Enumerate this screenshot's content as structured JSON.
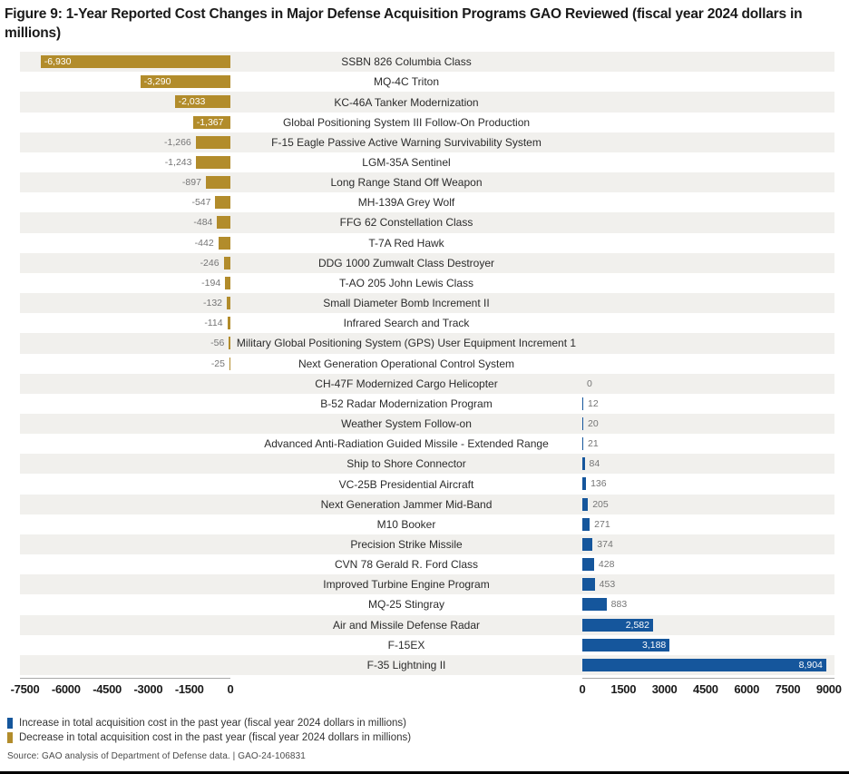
{
  "title": "Figure 9: 1-Year Reported Cost Changes in Major Defense Acquisition Programs GAO Reviewed (fiscal year 2024 dollars in millions)",
  "colors": {
    "increase_blue": "#15569C",
    "decrease_gold": "#B28C2B",
    "row_stripe": "#F1F0ED",
    "outside_value_gray": "#757575",
    "inside_value_white": "#FFFFFF"
  },
  "chart_data": {
    "type": "bar",
    "orientation": "diverging-horizontal",
    "title": "1-Year Reported Cost Changes in Major Defense Acquisition Programs GAO Reviewed",
    "value_unit": "fiscal year 2024 dollars in millions",
    "grid": false,
    "negative_axis": {
      "range": [
        -7500,
        0
      ],
      "ticks": [
        -7500,
        -6000,
        -4500,
        -3000,
        -1500,
        0
      ]
    },
    "positive_axis": {
      "range": [
        0,
        9000
      ],
      "ticks": [
        0,
        1500,
        3000,
        4500,
        6000,
        7500,
        9000
      ]
    },
    "programs": [
      {
        "name": "SSBN 826 Columbia Class",
        "value": -6930,
        "label": "-6,930"
      },
      {
        "name": "MQ-4C Triton",
        "value": -3290,
        "label": "-3,290"
      },
      {
        "name": "KC-46A Tanker Modernization",
        "value": -2033,
        "label": "-2,033"
      },
      {
        "name": "Global Positioning System III Follow-On Production",
        "value": -1367,
        "label": "-1,367"
      },
      {
        "name": "F-15 Eagle Passive Active Warning Survivability System",
        "value": -1266,
        "label": "-1,266"
      },
      {
        "name": "LGM-35A Sentinel",
        "value": -1243,
        "label": "-1,243"
      },
      {
        "name": "Long Range Stand Off Weapon",
        "value": -897,
        "label": "-897"
      },
      {
        "name": "MH-139A Grey Wolf",
        "value": -547,
        "label": "-547"
      },
      {
        "name": "FFG 62 Constellation Class",
        "value": -484,
        "label": "-484"
      },
      {
        "name": "T-7A Red Hawk",
        "value": -442,
        "label": "-442"
      },
      {
        "name": "DDG 1000 Zumwalt Class Destroyer",
        "value": -246,
        "label": "-246"
      },
      {
        "name": "T-AO 205 John Lewis Class",
        "value": -194,
        "label": "-194"
      },
      {
        "name": "Small Diameter Bomb Increment II",
        "value": -132,
        "label": "-132"
      },
      {
        "name": "Infrared Search and Track",
        "value": -114,
        "label": "-114"
      },
      {
        "name": "Military Global Positioning System (GPS) User Equipment Increment 1",
        "value": -56,
        "label": "-56"
      },
      {
        "name": "Next Generation Operational Control System",
        "value": -25,
        "label": "-25"
      },
      {
        "name": "CH-47F Modernized Cargo Helicopter",
        "value": 0,
        "label": "0"
      },
      {
        "name": "B-52 Radar Modernization Program",
        "value": 12,
        "label": "12"
      },
      {
        "name": "Weather System Follow-on",
        "value": 20,
        "label": "20"
      },
      {
        "name": "Advanced Anti-Radiation Guided Missile - Extended Range",
        "value": 21,
        "label": "21"
      },
      {
        "name": "Ship to Shore Connector",
        "value": 84,
        "label": "84"
      },
      {
        "name": "VC-25B Presidential Aircraft",
        "value": 136,
        "label": "136"
      },
      {
        "name": "Next Generation Jammer Mid-Band",
        "value": 205,
        "label": "205"
      },
      {
        "name": "M10 Booker",
        "value": 271,
        "label": "271"
      },
      {
        "name": "Precision Strike Missile",
        "value": 374,
        "label": "374"
      },
      {
        "name": "CVN 78 Gerald R. Ford Class",
        "value": 428,
        "label": "428"
      },
      {
        "name": "Improved Turbine Engine Program",
        "value": 453,
        "label": "453"
      },
      {
        "name": "MQ-25 Stingray",
        "value": 883,
        "label": "883"
      },
      {
        "name": "Air and Missile Defense Radar",
        "value": 2582,
        "label": "2,582"
      },
      {
        "name": "F-15EX",
        "value": 3188,
        "label": "3,188"
      },
      {
        "name": "F-35 Lightning II",
        "value": 8904,
        "label": "8,904"
      }
    ]
  },
  "legend": {
    "items": [
      {
        "label": "Increase in total acquisition cost in the past year (fiscal year 2024 dollars in millions)",
        "color": "#15569C"
      },
      {
        "label": "Decrease in total acquisition cost in the past year (fiscal year 2024 dollars in millions)",
        "color": "#B28C2B"
      }
    ]
  },
  "source": {
    "text": "Source: GAO analysis of Department of Defense data.  |  GAO-24-106831"
  }
}
